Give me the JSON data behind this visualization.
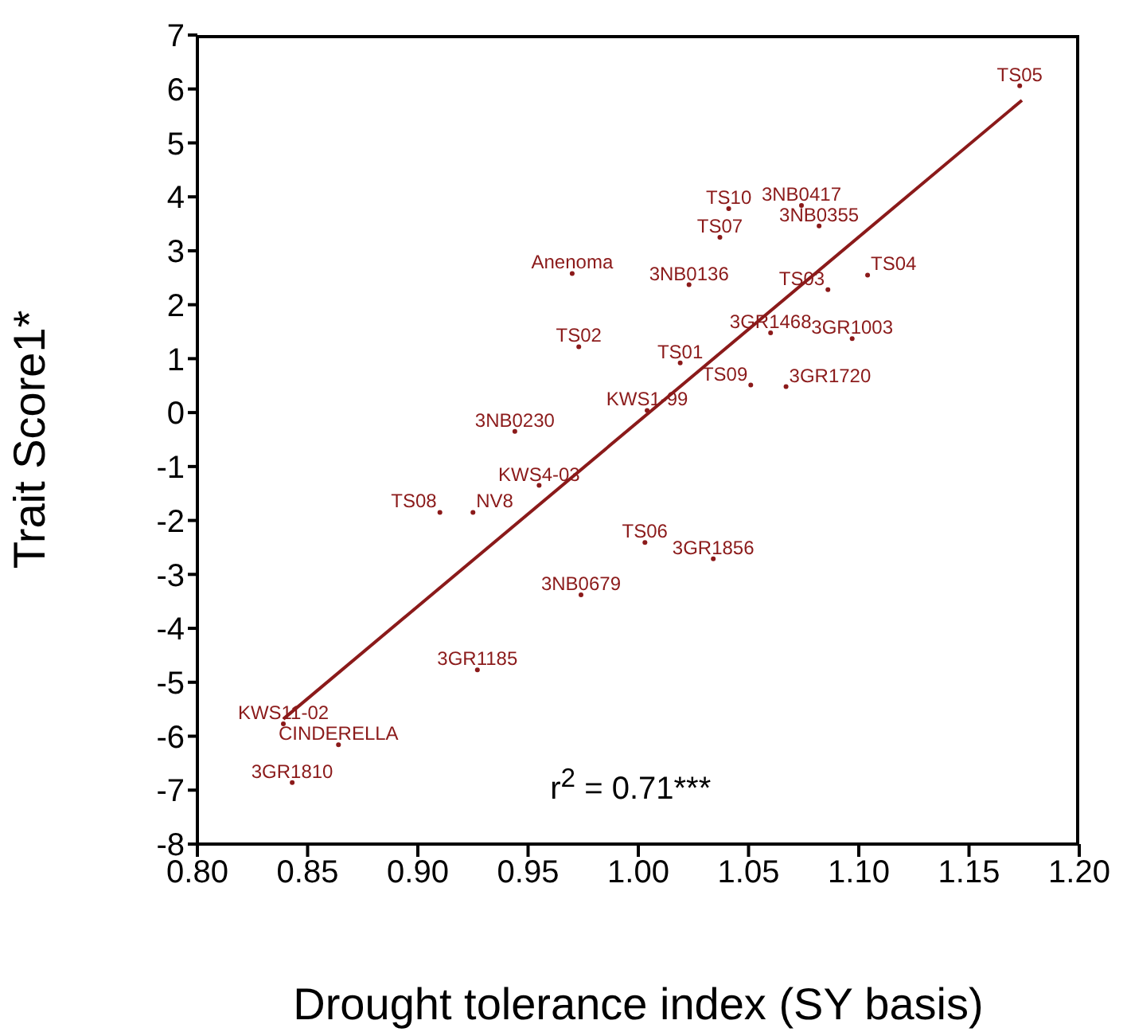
{
  "chart_data": {
    "type": "scatter",
    "xlabel": "Drought tolerance index (SY basis)",
    "ylabel": "Trait Score1*",
    "xlim": [
      0.8,
      1.2
    ],
    "xticks": [
      {
        "value": 0.8,
        "label": "0.80"
      },
      {
        "value": 0.85,
        "label": "0.85"
      },
      {
        "value": 0.9,
        "label": "0.90"
      },
      {
        "value": 0.95,
        "label": "0.95"
      },
      {
        "value": 1.0,
        "label": "1.00"
      },
      {
        "value": 1.05,
        "label": "1.05"
      },
      {
        "value": 1.1,
        "label": "1.10"
      },
      {
        "value": 1.15,
        "label": "1.15"
      },
      {
        "value": 1.2,
        "label": "1.20"
      }
    ],
    "ylim": [
      -8,
      7
    ],
    "yticks": [
      -8,
      -7,
      -6,
      -5,
      -4,
      -3,
      -2,
      -1,
      0,
      1,
      2,
      3,
      4,
      5,
      6,
      7
    ],
    "annotations": [
      "r$^{2}$ = 0.71***"
    ],
    "series": [
      {
        "color": "#8b1a1a",
        "marker": "circle",
        "x": [
          1.173,
          1.041,
          1.074,
          1.082,
          1.037,
          0.97,
          1.023,
          1.104,
          1.086,
          1.06,
          1.097,
          0.973,
          1.019,
          1.051,
          1.067,
          1.004,
          0.944,
          0.955,
          0.91,
          0.925,
          1.003,
          1.034,
          0.974,
          0.927,
          0.839,
          0.864,
          0.843
        ],
        "values": [
          6.06,
          3.78,
          3.84,
          3.46,
          3.25,
          2.58,
          2.37,
          2.55,
          2.28,
          1.48,
          1.37,
          1.22,
          0.92,
          0.51,
          0.48,
          0.04,
          -0.35,
          -1.35,
          -1.85,
          -1.85,
          -2.41,
          -2.71,
          -3.38,
          -4.77,
          -5.77,
          -6.16,
          -6.86
        ],
        "value_labels": [
          "TS05",
          "TS10",
          "3NB0417",
          "3NB0355",
          "TS07",
          "Anenoma",
          "3NB0136",
          "TS04",
          "TS03",
          "3GR1468",
          "3GR1003",
          "TS02",
          "TS01",
          "TS09",
          "3GR1720",
          "KWS1-99",
          "3NB0230",
          "KWS4-03",
          "TS08",
          "NV8",
          "TS06",
          "3GR1856",
          "3NB0679",
          "3GR1185",
          "KWS11-02",
          "CINDERELLA",
          "3GR1810"
        ]
      },
      {
        "type": "line",
        "color": "#8b1a1a",
        "x": [
          0.839,
          1.174
        ],
        "values": [
          -5.68,
          5.79
        ]
      }
    ]
  }
}
